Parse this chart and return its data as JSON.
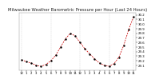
{
  "title": "Milwaukee Weather Barometric Pressure per Hour (Last 24 Hours)",
  "ylabel_values": [
    29.1,
    29.2,
    29.3,
    29.4,
    29.5,
    29.6,
    29.7,
    29.8,
    29.9,
    30.0,
    30.1,
    30.2
  ],
  "x_hours": [
    0,
    1,
    2,
    3,
    4,
    5,
    6,
    7,
    8,
    9,
    10,
    11,
    12,
    13,
    14,
    15,
    16,
    17,
    18,
    19,
    20,
    21,
    22,
    23
  ],
  "pressure": [
    29.22,
    29.18,
    29.15,
    29.1,
    29.08,
    29.12,
    29.2,
    29.32,
    29.5,
    29.68,
    29.8,
    29.74,
    29.6,
    29.46,
    29.35,
    29.24,
    29.15,
    29.1,
    29.08,
    29.14,
    29.28,
    29.54,
    29.88,
    30.16
  ],
  "line_color": "#cc0000",
  "marker_color": "#000000",
  "bg_color": "#ffffff",
  "grid_color": "#bbbbbb",
  "ylim": [
    29.0,
    30.25
  ],
  "xlim": [
    -0.5,
    23.5
  ],
  "vgrid_positions": [
    0,
    6,
    12,
    18,
    23
  ],
  "x_tick_labels": [
    "12",
    "1",
    "2",
    "3",
    "4",
    "5",
    "6",
    "7",
    "8",
    "9",
    "10",
    "11",
    "12",
    "1",
    "2",
    "3",
    "4",
    "5",
    "6",
    "7",
    "8",
    "9",
    "10",
    "11"
  ],
  "title_fontsize": 3.8,
  "tick_fontsize": 2.8,
  "line_width": 0.55,
  "marker_size": 1.5
}
